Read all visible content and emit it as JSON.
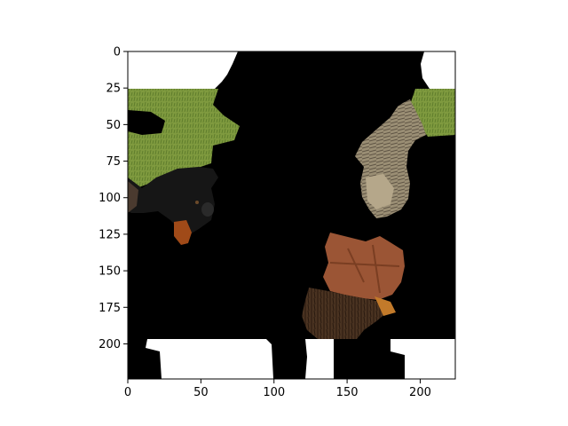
{
  "figure": {
    "background": "#ffffff",
    "axes_frame_color": "#000000"
  },
  "chart_data": {
    "type": "image",
    "title": "",
    "xlabel": "",
    "ylabel": "",
    "xlim": [
      0,
      224
    ],
    "ylim": [
      224,
      0
    ],
    "x_ticks": [
      0,
      50,
      100,
      150,
      200
    ],
    "y_ticks": [
      0,
      25,
      50,
      75,
      100,
      125,
      150,
      175,
      200
    ],
    "x_tick_labels": [
      "0",
      "50",
      "100",
      "150",
      "200"
    ],
    "y_tick_labels": [
      "0",
      "25",
      "50",
      "75",
      "100",
      "125",
      "150",
      "175",
      "200"
    ],
    "grid": false,
    "legend": "none",
    "content": [
      "grass",
      "black dog",
      "tabby cat",
      "autumn leaf",
      "tree bark"
    ],
    "colors": {
      "mask": "#000000",
      "blank": "#ffffff",
      "grass": "#7f9a3f",
      "dog": "#161616",
      "cat": "#9a8e74",
      "leaf": "#9b5535",
      "bark": "#4a3321"
    }
  }
}
